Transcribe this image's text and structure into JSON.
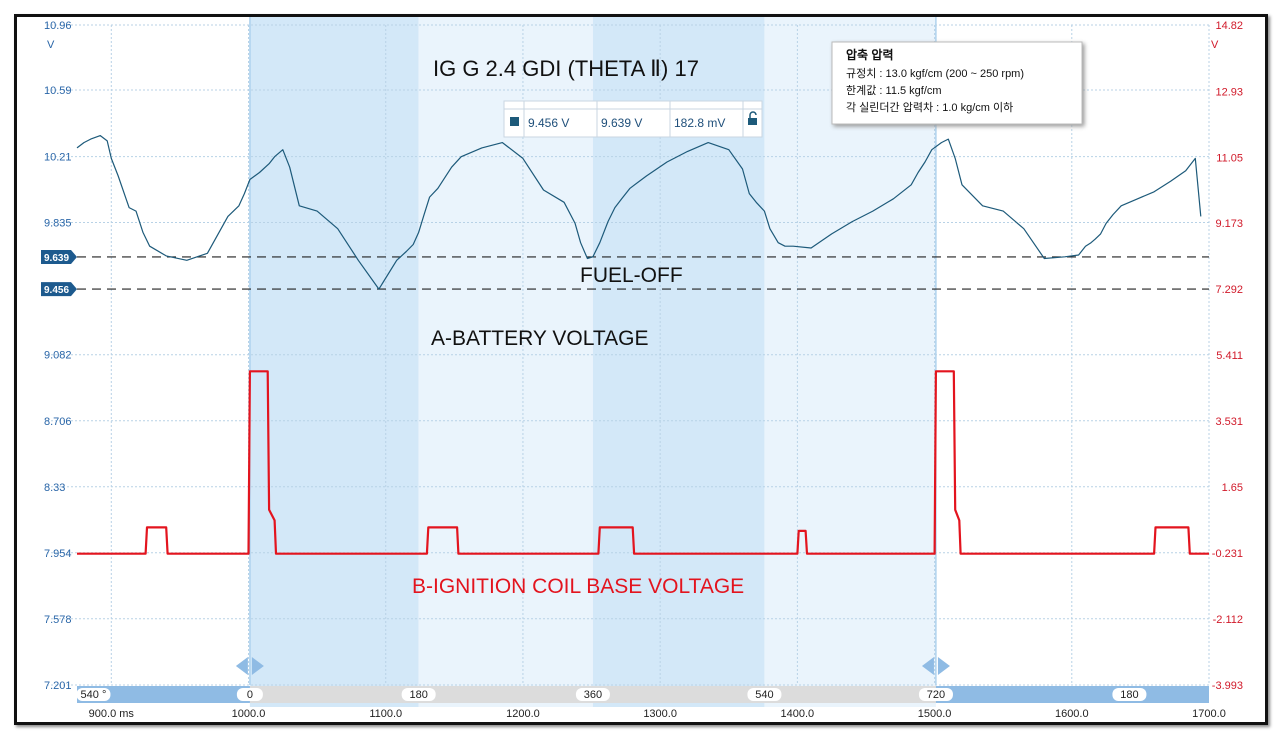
{
  "chart_data": {
    "type": "line",
    "title": "IG G 2.4 GDI (THETA Ⅱ) 17",
    "x_axis": {
      "unit_first_label": "900.0 ms",
      "ticks": [
        "900.0 ms",
        "1000.0",
        "1100.0",
        "1200.0",
        "1300.0",
        "1400.0",
        "1500.0",
        "1600.0",
        "1700.0"
      ],
      "range_ms": [
        875,
        1700
      ]
    },
    "y_left": {
      "unit": "V",
      "top_label": "10.96",
      "ticks": [
        "10.96",
        "10.59",
        "10.21",
        "9.835",
        "9.082",
        "8.706",
        "8.33",
        "7.954",
        "7.578",
        "7.201"
      ],
      "range": [
        7.201,
        10.96
      ]
    },
    "y_right": {
      "unit": "V",
      "top_label": "14.82",
      "ticks": [
        "14.82",
        "12.93",
        "11.05",
        "9.173",
        "7.292",
        "5.411",
        "3.531",
        "1.65",
        "-0.231",
        "-2.112",
        "-3.993"
      ],
      "range": [
        -3.993,
        14.82
      ]
    },
    "series": [
      {
        "name": "A-BATTERY VOLTAGE",
        "axis": "left",
        "color": "#1d5a7a",
        "x": [
          875,
          880,
          885,
          892,
          897,
          900,
          905,
          913,
          918,
          923,
          928,
          940,
          955,
          970,
          985,
          993,
          997,
          1001,
          1008,
          1015,
          1019,
          1022,
          1025,
          1030,
          1037,
          1050,
          1065,
          1080,
          1095,
          1108,
          1115,
          1120,
          1124,
          1128,
          1132,
          1138,
          1143,
          1148,
          1155,
          1170,
          1185,
          1200,
          1215,
          1230,
          1238,
          1242,
          1247,
          1251,
          1256,
          1262,
          1267,
          1272,
          1278,
          1290,
          1305,
          1320,
          1335,
          1350,
          1360,
          1365,
          1370,
          1376,
          1380,
          1386,
          1391,
          1397,
          1410,
          1425,
          1440,
          1455,
          1470,
          1483,
          1488,
          1493,
          1498,
          1505,
          1510,
          1515,
          1520,
          1535,
          1550,
          1565,
          1580,
          1595,
          1605,
          1610,
          1614,
          1617,
          1621,
          1625,
          1630,
          1636,
          1648,
          1660,
          1672,
          1683,
          1690,
          1694
        ],
        "y": [
          10.26,
          10.29,
          10.31,
          10.33,
          10.3,
          10.2,
          10.1,
          9.92,
          9.9,
          9.78,
          9.7,
          9.645,
          9.62,
          9.66,
          9.87,
          9.93,
          10.0,
          10.08,
          10.12,
          10.17,
          10.21,
          10.23,
          10.25,
          10.15,
          9.93,
          9.9,
          9.8,
          9.62,
          9.456,
          9.62,
          9.67,
          9.71,
          9.78,
          9.88,
          9.98,
          10.03,
          10.09,
          10.15,
          10.21,
          10.26,
          10.29,
          10.2,
          10.02,
          9.95,
          9.83,
          9.72,
          9.63,
          9.64,
          9.72,
          9.84,
          9.92,
          9.97,
          10.03,
          10.1,
          10.18,
          10.24,
          10.29,
          10.25,
          10.14,
          10.0,
          9.95,
          9.9,
          9.8,
          9.72,
          9.7,
          9.7,
          9.69,
          9.77,
          9.84,
          9.9,
          9.97,
          10.05,
          10.12,
          10.18,
          10.25,
          10.29,
          10.31,
          10.2,
          10.05,
          9.93,
          9.9,
          9.8,
          9.63,
          9.64,
          9.65,
          9.7,
          9.72,
          9.74,
          9.77,
          9.83,
          9.88,
          9.93,
          9.97,
          10.01,
          10.07,
          10.13,
          10.2,
          9.87
        ]
      },
      {
        "name": "B-IGNITION COIL BASE VOLTAGE",
        "axis": "right",
        "color": "#e3141e",
        "x": [
          875,
          925,
          926,
          940,
          941,
          1000,
          1001,
          1014,
          1015,
          1019,
          1020,
          1040,
          1041,
          1130,
          1131,
          1152,
          1153,
          1255,
          1256,
          1280,
          1281,
          1400,
          1401,
          1406,
          1407,
          1500,
          1501,
          1514,
          1515,
          1518,
          1519,
          1540,
          1541,
          1660,
          1661,
          1685,
          1686,
          1700
        ],
        "y": [
          -0.25,
          -0.25,
          0.5,
          0.5,
          -0.25,
          -0.25,
          4.95,
          4.95,
          1.0,
          0.7,
          -0.25,
          -0.25,
          -0.25,
          -0.25,
          0.5,
          0.5,
          -0.25,
          -0.25,
          0.5,
          0.5,
          -0.25,
          -0.25,
          0.4,
          0.4,
          -0.25,
          -0.25,
          4.95,
          4.95,
          1.0,
          0.7,
          -0.25,
          -0.25,
          -0.25,
          -0.25,
          0.5,
          0.5,
          -0.25,
          -0.25
        ]
      }
    ],
    "reference_lines": [
      {
        "value": 9.639,
        "label": "9.639",
        "axis": "left"
      },
      {
        "value": 9.456,
        "label": "9.456",
        "axis": "left"
      }
    ],
    "shaded_regions_ms": [
      [
        1001,
        1124
      ],
      [
        1124,
        1251
      ],
      [
        1251,
        1376
      ],
      [
        1376,
        1501
      ]
    ],
    "crank_degree_bar": {
      "labels": [
        "540 °",
        "0",
        "180",
        "360",
        "540",
        "720",
        "180"
      ],
      "positions_ms": [
        887,
        1001,
        1124,
        1251,
        1376,
        1501,
        1642
      ]
    },
    "annotations": [
      "FUEL-OFF",
      "A-BATTERY VOLTAGE",
      "B-IGNITION COIL BASE VOLTAGE"
    ],
    "grid": true
  },
  "measurement": {
    "headers": [
      "",
      "",
      ""
    ],
    "values": [
      "9.456 V",
      "9.639 V",
      "182.8 mV"
    ]
  },
  "note": {
    "title": "압축 압력",
    "lines": [
      "규정치 : 13.0 kgf/cm (200 ~ 250 rpm)",
      "한계값 : 11.5 kgf/cm",
      "각 실린더간 압력차 : 1.0 kg/cm 이하"
    ]
  }
}
